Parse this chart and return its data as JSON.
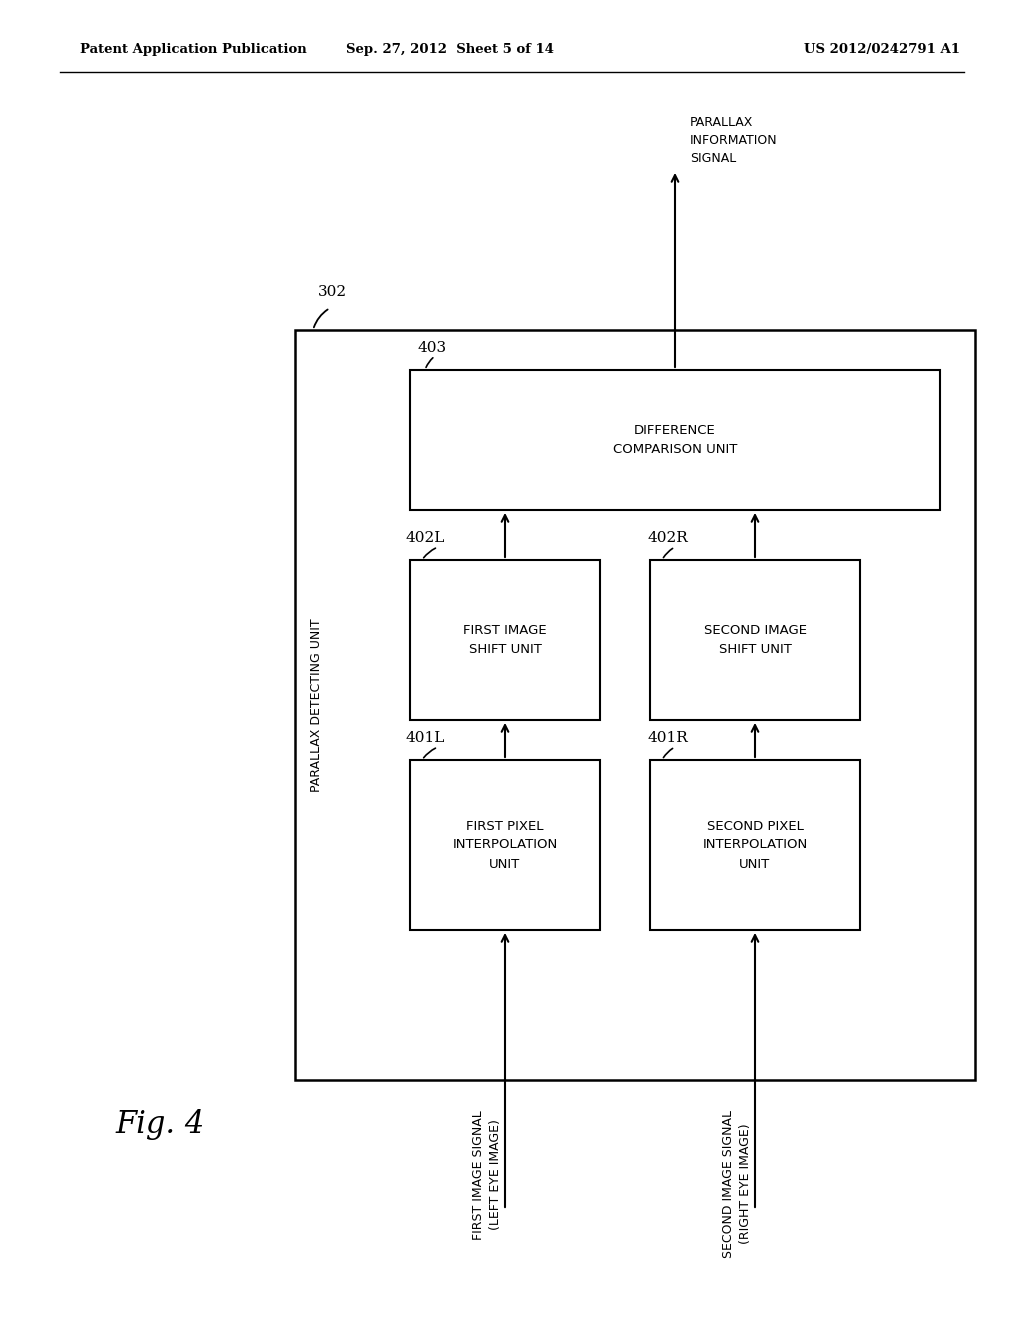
{
  "bg_color": "#ffffff",
  "header_left": "Patent Application Publication",
  "header_mid": "Sep. 27, 2012  Sheet 5 of 14",
  "header_right": "US 2012/0242791 A1",
  "fig_label": "Fig. 4",
  "outer_box_label": "302",
  "outer_box_label2": "PARALLAX DETECTING UNIT",
  "inner_label_403": "403",
  "box_403_text": "DIFFERENCE\nCOMPARISON UNIT",
  "label_402L": "402L",
  "box_402L_text": "FIRST IMAGE\nSHIFT UNIT",
  "label_402R": "402R",
  "box_402R_text": "SECOND IMAGE\nSHIFT UNIT",
  "label_401L": "401L",
  "box_401L_text": "FIRST PIXEL\nINTERPOLATION\nUNIT",
  "label_401R": "401R",
  "box_401R_text": "SECOND PIXEL\nINTERPOLATION\nUNIT",
  "arrow_out_text": "PARALLAX\nINFORMATION\nSIGNAL",
  "arrow_in_left_text": "FIRST IMAGE SIGNAL\n(LEFT EYE IMAGE)",
  "arrow_in_right_text": "SECOND IMAGE SIGNAL\n(RIGHT EYE IMAGE)"
}
